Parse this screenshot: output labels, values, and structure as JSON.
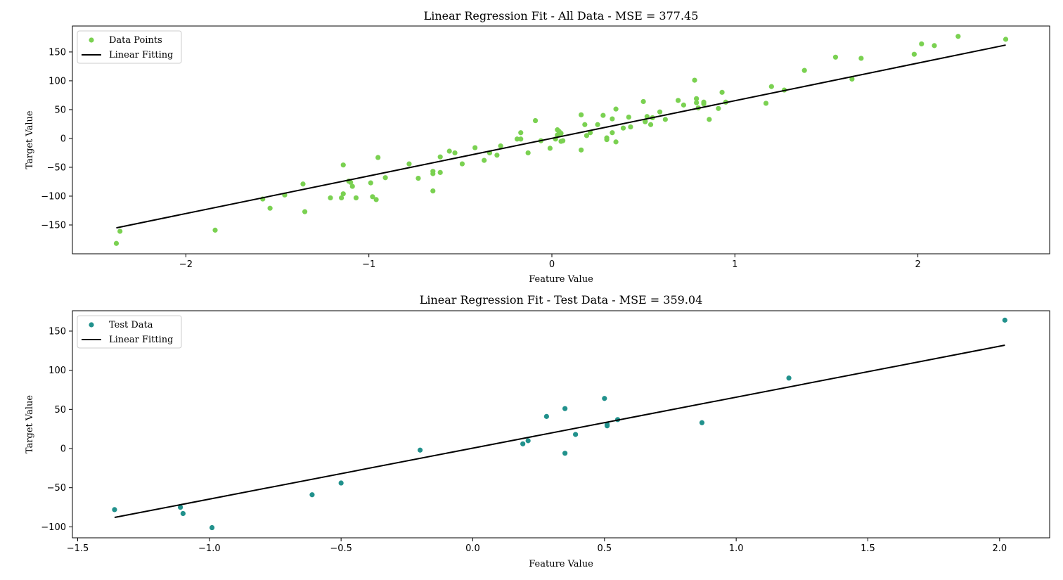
{
  "chart_data": [
    {
      "type": "scatter",
      "title": "Linear Regression Fit - All Data - MSE = 377.45",
      "xlabel": "Feature Value",
      "ylabel": "Target Value",
      "xlim": [
        -2.62,
        2.72
      ],
      "ylim": [
        -200,
        195
      ],
      "xticks": [
        -2,
        -1,
        0,
        1,
        2
      ],
      "xtick_labels": [
        "−2",
        "−1",
        "0",
        "1",
        "2"
      ],
      "yticks": [
        -150,
        -100,
        -50,
        0,
        50,
        100,
        150
      ],
      "ytick_labels": [
        "−150",
        "−100",
        "−50",
        "0",
        "50",
        "100",
        "150"
      ],
      "legend_placement": "top-left",
      "grid": false,
      "series": [
        {
          "name": "Data Points",
          "kind": "points",
          "color": "#7ad151",
          "points": [
            [
              -2.38,
              -182
            ],
            [
              -2.36,
              -161
            ],
            [
              -1.84,
              -159
            ],
            [
              -1.58,
              -105
            ],
            [
              -1.54,
              -121
            ],
            [
              -1.46,
              -98
            ],
            [
              -1.36,
              -79
            ],
            [
              -1.35,
              -127
            ],
            [
              -1.21,
              -103
            ],
            [
              -1.15,
              -103
            ],
            [
              -1.14,
              -96
            ],
            [
              -1.14,
              -46
            ],
            [
              -1.11,
              -74
            ],
            [
              -1.1,
              -76
            ],
            [
              -1.09,
              -83
            ],
            [
              -1.07,
              -103
            ],
            [
              -0.99,
              -77
            ],
            [
              -0.98,
              -101
            ],
            [
              -0.96,
              -106
            ],
            [
              -0.95,
              -33
            ],
            [
              -0.91,
              -68
            ],
            [
              -0.78,
              -44
            ],
            [
              -0.73,
              -69
            ],
            [
              -0.65,
              -91
            ],
            [
              -0.65,
              -57
            ],
            [
              -0.65,
              -61
            ],
            [
              -0.61,
              -32
            ],
            [
              -0.61,
              -59
            ],
            [
              -0.56,
              -22
            ],
            [
              -0.53,
              -25
            ],
            [
              -0.49,
              -44
            ],
            [
              -0.42,
              -16
            ],
            [
              -0.37,
              -38
            ],
            [
              -0.34,
              -25
            ],
            [
              -0.3,
              -29
            ],
            [
              -0.28,
              -13
            ],
            [
              -0.19,
              -1
            ],
            [
              -0.17,
              10
            ],
            [
              -0.17,
              -1
            ],
            [
              -0.13,
              -25
            ],
            [
              -0.09,
              31
            ],
            [
              -0.06,
              -4
            ],
            [
              -0.01,
              -17
            ],
            [
              0.02,
              -1
            ],
            [
              0.03,
              15
            ],
            [
              0.03,
              6
            ],
            [
              0.04,
              12
            ],
            [
              0.05,
              -5
            ],
            [
              0.05,
              9
            ],
            [
              0.06,
              -4
            ],
            [
              0.16,
              41
            ],
            [
              0.16,
              -20
            ],
            [
              0.18,
              24
            ],
            [
              0.19,
              5
            ],
            [
              0.21,
              10
            ],
            [
              0.25,
              24
            ],
            [
              0.28,
              40
            ],
            [
              0.3,
              1
            ],
            [
              0.3,
              -2
            ],
            [
              0.33,
              10
            ],
            [
              0.33,
              34
            ],
            [
              0.35,
              51
            ],
            [
              0.35,
              -6
            ],
            [
              0.39,
              18
            ],
            [
              0.42,
              37
            ],
            [
              0.43,
              20
            ],
            [
              0.5,
              64
            ],
            [
              0.51,
              29
            ],
            [
              0.51,
              30
            ],
            [
              0.52,
              38
            ],
            [
              0.54,
              24
            ],
            [
              0.55,
              36
            ],
            [
              0.59,
              46
            ],
            [
              0.62,
              33
            ],
            [
              0.69,
              66
            ],
            [
              0.72,
              58
            ],
            [
              0.78,
              101
            ],
            [
              0.79,
              69
            ],
            [
              0.79,
              62
            ],
            [
              0.8,
              53
            ],
            [
              0.83,
              63
            ],
            [
              0.83,
              60
            ],
            [
              0.86,
              33
            ],
            [
              0.91,
              52
            ],
            [
              0.93,
              80
            ],
            [
              0.95,
              63
            ],
            [
              1.17,
              61
            ],
            [
              1.2,
              90
            ],
            [
              1.27,
              84
            ],
            [
              1.38,
              118
            ],
            [
              1.55,
              141
            ],
            [
              1.64,
              103
            ],
            [
              1.69,
              139
            ],
            [
              1.98,
              146
            ],
            [
              2.02,
              164
            ],
            [
              2.09,
              161
            ],
            [
              2.22,
              177
            ],
            [
              2.48,
              172
            ]
          ]
        },
        {
          "name": "Linear Fitting",
          "kind": "line",
          "color": "#000000",
          "points": [
            [
              -2.38,
              -155
            ],
            [
              2.48,
              162
            ]
          ]
        }
      ]
    },
    {
      "type": "scatter",
      "title": "Linear Regression Fit - Test Data - MSE = 359.04",
      "xlabel": "Feature Value",
      "ylabel": "Target Value",
      "xlim": [
        -1.52,
        2.19
      ],
      "ylim": [
        -114,
        176
      ],
      "xticks": [
        -1.5,
        -1.0,
        -0.5,
        0.0,
        0.5,
        1.0,
        1.5,
        2.0
      ],
      "xtick_labels": [
        "−1.5",
        "−1.0",
        "−0.5",
        "0.0",
        "0.5",
        "1.0",
        "1.5",
        "2.0"
      ],
      "yticks": [
        -100,
        -50,
        0,
        50,
        100,
        150
      ],
      "ytick_labels": [
        "−100",
        "−50",
        "0",
        "50",
        "100",
        "150"
      ],
      "legend_placement": "top-left",
      "grid": false,
      "series": [
        {
          "name": "Test Data",
          "kind": "points",
          "color": "#21918c",
          "points": [
            [
              -1.36,
              -78
            ],
            [
              -1.11,
              -75
            ],
            [
              -1.1,
              -83
            ],
            [
              -0.99,
              -101
            ],
            [
              -0.61,
              -59
            ],
            [
              -0.5,
              -44
            ],
            [
              -0.2,
              -2
            ],
            [
              0.19,
              6
            ],
            [
              0.21,
              10
            ],
            [
              0.28,
              41
            ],
            [
              0.35,
              51
            ],
            [
              0.35,
              -6
            ],
            [
              0.39,
              18
            ],
            [
              0.5,
              64
            ],
            [
              0.51,
              29
            ],
            [
              0.51,
              31
            ],
            [
              0.55,
              37
            ],
            [
              0.87,
              33
            ],
            [
              1.2,
              90
            ],
            [
              2.02,
              164
            ]
          ]
        },
        {
          "name": "Linear Fitting",
          "kind": "line",
          "color": "#000000",
          "points": [
            [
              -1.36,
              -88
            ],
            [
              2.02,
              132
            ]
          ]
        }
      ]
    }
  ]
}
